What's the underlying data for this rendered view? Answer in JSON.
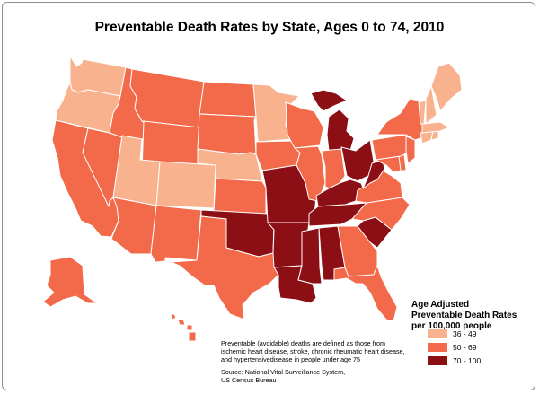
{
  "title": "Preventable Death Rates by State, Ages 0 to 74, 2010",
  "legend": {
    "title_lines": [
      "Age Adjusted",
      "Preventable Death Rates",
      "per 100,000 people"
    ],
    "classes": [
      {
        "label": "36 - 49",
        "color": "#f8b28e"
      },
      {
        "label": "50 - 69",
        "color": "#f26a49"
      },
      {
        "label": "70 - 100",
        "color": "#8b0f15"
      }
    ]
  },
  "footnote": {
    "lines": [
      "Preventable (avoidable) deaths are defined as those from",
      "ischemic heart disease, stroke, chronic rheumatic heart disease,",
      "and hypertensivedisease in people under age 75"
    ],
    "source_lines": [
      "Source: National Vital Surveillance System,",
      "US Census Bureau"
    ]
  },
  "map_data": {
    "state_class": {
      "WA": 0,
      "OR": 0,
      "UT": 0,
      "CO": 0,
      "MN": 0,
      "NE": 0,
      "VT": 0,
      "NH": 0,
      "ME": 0,
      "MA": 0,
      "CT": 0,
      "RI": 0,
      "CA": 1,
      "NV": 1,
      "ID": 1,
      "MT": 1,
      "WY": 1,
      "AZ": 1,
      "NM": 1,
      "TX": 1,
      "ND": 1,
      "SD": 1,
      "KS": 1,
      "IA": 1,
      "WI": 1,
      "IL": 1,
      "IN": 1,
      "NY": 1,
      "PA": 1,
      "NJ": 1,
      "VA": 1,
      "NC": 1,
      "GA": 1,
      "FL": 1,
      "AK": 1,
      "HI": 1,
      "MD": 1,
      "DE": 1,
      "MI": 2,
      "OH": 2,
      "WV": 2,
      "KY": 2,
      "TN": 2,
      "MO": 2,
      "AR": 2,
      "OK": 2,
      "LA": 2,
      "MS": 2,
      "AL": 2,
      "SC": 2
    }
  }
}
